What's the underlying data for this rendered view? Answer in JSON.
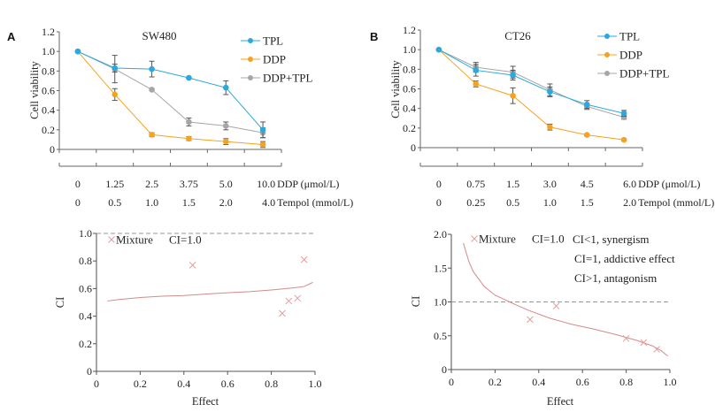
{
  "panels": [
    {
      "letter": "A"
    },
    {
      "letter": "B"
    }
  ],
  "colors": {
    "TPL": "#29a9df",
    "DDP": "#f5a31e",
    "DDP+TPL": "#a6a6a6",
    "ci_curve": "#d48a8a",
    "ci_marker": "#e0a0a0",
    "ref_line": "#999999"
  },
  "chart_data": [
    {
      "type": "line",
      "title": "SW480",
      "ylabel": "Cell viability",
      "ylim": [
        0,
        1.2
      ],
      "yticks": [
        "0",
        "0.2",
        "0.4",
        "0.6",
        "0.8",
        "1.0",
        "1.2"
      ],
      "legend": "top-right",
      "x_rows": [
        {
          "label": "DDP (μmol/L)",
          "values": [
            "0",
            "1.25",
            "2.5",
            "3.75",
            "5.0",
            "10.0"
          ]
        },
        {
          "label": "Tempol (mmol/L)",
          "values": [
            "0",
            "0.5",
            "1.0",
            "1.5",
            "2.0",
            "4.0"
          ]
        }
      ],
      "series": [
        {
          "name": "TPL",
          "values": [
            1.0,
            0.83,
            0.82,
            0.73,
            0.63,
            0.2
          ],
          "errors": [
            0,
            0.04,
            0.08,
            0.01,
            0.07,
            0.08
          ]
        },
        {
          "name": "DDP",
          "values": [
            1.0,
            0.56,
            0.15,
            0.11,
            0.08,
            0.05
          ],
          "errors": [
            0,
            0.06,
            0.02,
            0.02,
            0.03,
            0.03
          ]
        },
        {
          "name": "DDP+TPL",
          "values": [
            1.0,
            0.82,
            0.61,
            0.28,
            0.24,
            0.17
          ],
          "errors": [
            0,
            0.14,
            0.01,
            0.04,
            0.04,
            0.05
          ]
        }
      ]
    },
    {
      "type": "line",
      "title": "CT26",
      "ylabel": "Cell viability",
      "ylim": [
        0,
        1.2
      ],
      "yticks": [
        "0",
        "0.2",
        "0.4",
        "0.6",
        "0.8",
        "1.0",
        "1.2"
      ],
      "legend": "top-right",
      "x_rows": [
        {
          "label": "DDP (μmol/L)",
          "values": [
            "0",
            "0.75",
            "1.5",
            "3.0",
            "4.5",
            "6.0"
          ]
        },
        {
          "label": "Tempol (mmol/L)",
          "values": [
            "0",
            "0.25",
            "0.5",
            "1.0",
            "1.5",
            "2.0"
          ]
        }
      ],
      "series": [
        {
          "name": "TPL",
          "values": [
            1.0,
            0.79,
            0.74,
            0.57,
            0.44,
            0.35
          ],
          "errors": [
            0,
            0.06,
            0.05,
            0.05,
            0.04,
            0.03
          ]
        },
        {
          "name": "DDP",
          "values": [
            1.0,
            0.65,
            0.53,
            0.21,
            0.13,
            0.08
          ],
          "errors": [
            0,
            0.03,
            0.08,
            0.03,
            0.01,
            0.01
          ]
        },
        {
          "name": "DDP+TPL",
          "values": [
            1.0,
            0.82,
            0.77,
            0.59,
            0.42,
            0.31
          ],
          "errors": [
            0,
            0.05,
            0.06,
            0.06,
            0.03,
            0.02
          ]
        }
      ]
    },
    {
      "type": "scatter",
      "xlabel": "Effect",
      "ylabel": "CI",
      "xlim": [
        0,
        1.0
      ],
      "ylim": [
        0,
        1.0
      ],
      "xticks": [
        "0",
        "0.2",
        "0.4",
        "0.6",
        "0.8",
        "1.0"
      ],
      "yticks": [
        "0",
        "0.2",
        "0.4",
        "0.6",
        "0.8",
        "1.0"
      ],
      "reference_line": 1.0,
      "legend_items": [
        "Mixture",
        "CI=1.0"
      ],
      "points": [
        [
          0.44,
          0.77
        ],
        [
          0.85,
          0.42
        ],
        [
          0.88,
          0.51
        ],
        [
          0.92,
          0.53
        ],
        [
          0.95,
          0.81
        ]
      ],
      "curve": [
        [
          0.05,
          0.51
        ],
        [
          0.1,
          0.52
        ],
        [
          0.2,
          0.535
        ],
        [
          0.3,
          0.545
        ],
        [
          0.4,
          0.55
        ],
        [
          0.5,
          0.56
        ],
        [
          0.6,
          0.57
        ],
        [
          0.7,
          0.578
        ],
        [
          0.8,
          0.59
        ],
        [
          0.9,
          0.605
        ],
        [
          0.95,
          0.615
        ],
        [
          0.99,
          0.645
        ]
      ]
    },
    {
      "type": "scatter",
      "xlabel": "Effect",
      "ylabel": "CI",
      "xlim": [
        0,
        1.0
      ],
      "ylim": [
        0,
        2.0
      ],
      "xticks": [
        "0",
        "0.2",
        "0.4",
        "0.6",
        "0.8",
        "1.0"
      ],
      "yticks": [
        "0",
        "0.5",
        "1.0",
        "1.5",
        "2.0"
      ],
      "reference_line": 1.0,
      "legend_items": [
        "Mixture",
        "CI=1.0"
      ],
      "annotations": [
        "CI<1, synergism",
        "CI=1, addictive effect",
        "CI>1, antagonism"
      ],
      "points": [
        [
          0.36,
          0.74
        ],
        [
          0.48,
          0.94
        ],
        [
          0.8,
          0.46
        ],
        [
          0.88,
          0.4
        ],
        [
          0.94,
          0.3
        ]
      ],
      "curve": [
        [
          0.055,
          1.87
        ],
        [
          0.08,
          1.6
        ],
        [
          0.1,
          1.45
        ],
        [
          0.15,
          1.23
        ],
        [
          0.2,
          1.1
        ],
        [
          0.28,
          0.98
        ],
        [
          0.35,
          0.88
        ],
        [
          0.45,
          0.76
        ],
        [
          0.55,
          0.67
        ],
        [
          0.65,
          0.6
        ],
        [
          0.75,
          0.52
        ],
        [
          0.85,
          0.43
        ],
        [
          0.92,
          0.35
        ],
        [
          0.96,
          0.28
        ],
        [
          0.99,
          0.2
        ]
      ]
    }
  ]
}
